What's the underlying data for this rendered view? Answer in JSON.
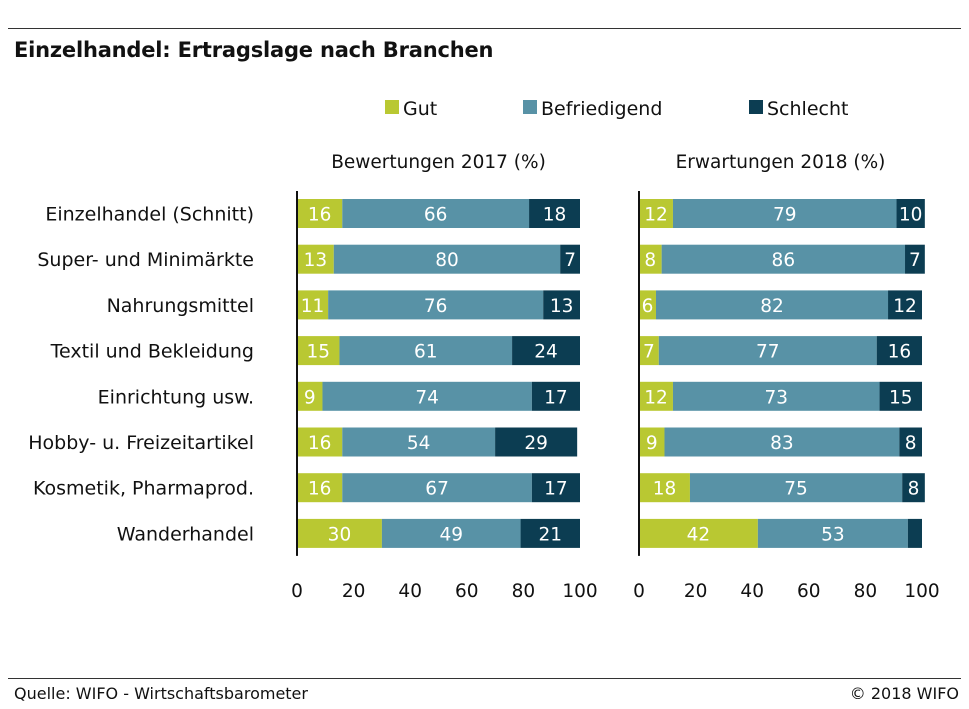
{
  "title": "Einzelhandel: Ertragslage nach Branchen",
  "source": "Quelle: WIFO - Wirtschaftsbarometer",
  "copyright": "© 2018 WIFO",
  "legend": [
    {
      "label": "Gut",
      "color": "#b9c832"
    },
    {
      "label": "Befriedigend",
      "color": "#5892a6"
    },
    {
      "label": "Schlecht",
      "color": "#0c3d52"
    }
  ],
  "chart_data": [
    {
      "type": "bar",
      "orientation": "horizontal",
      "stacked": true,
      "title": "Bewertungen 2017 (%)",
      "categories": [
        "Einzelhandel (Schnitt)",
        "Super- und Minimärkte",
        "Nahrungsmittel",
        "Textil und Bekleidung",
        "Einrichtung usw.",
        "Hobby- u. Freizeitartikel",
        "Kosmetik, Pharmaprod.",
        "Wanderhandel"
      ],
      "series": [
        {
          "name": "Gut",
          "color": "#b9c832",
          "values": [
            16,
            13,
            11,
            15,
            9,
            16,
            16,
            30
          ]
        },
        {
          "name": "Befriedigend",
          "color": "#5892a6",
          "values": [
            66,
            80,
            76,
            61,
            74,
            54,
            67,
            49
          ]
        },
        {
          "name": "Schlecht",
          "color": "#0c3d52",
          "values": [
            18,
            7,
            13,
            24,
            17,
            29,
            17,
            21
          ]
        }
      ],
      "xlim": [
        0,
        100
      ],
      "xticks": [
        "0",
        "20",
        "40",
        "60",
        "80",
        "100"
      ],
      "legend_position": "top"
    },
    {
      "type": "bar",
      "orientation": "horizontal",
      "stacked": true,
      "title": "Erwartungen 2018 (%)",
      "categories": [
        "Einzelhandel (Schnitt)",
        "Super- und Minimärkte",
        "Nahrungsmittel",
        "Textil und Bekleidung",
        "Einrichtung usw.",
        "Hobby- u. Freizeitartikel",
        "Kosmetik, Pharmaprod.",
        "Wanderhandel"
      ],
      "series": [
        {
          "name": "Gut",
          "color": "#b9c832",
          "values": [
            12,
            8,
            6,
            7,
            12,
            9,
            18,
            42
          ]
        },
        {
          "name": "Befriedigend",
          "color": "#5892a6",
          "values": [
            79,
            86,
            82,
            77,
            73,
            83,
            75,
            53
          ]
        },
        {
          "name": "Schlecht",
          "color": "#0c3d52",
          "values": [
            10,
            7,
            12,
            16,
            15,
            8,
            8,
            5
          ]
        }
      ],
      "value_labels": [
        [
          "12",
          "79",
          "10"
        ],
        [
          "8",
          "86",
          "7"
        ],
        [
          "6",
          "82",
          "12"
        ],
        [
          "7",
          "77",
          "16"
        ],
        [
          "12",
          "73",
          "15"
        ],
        [
          "9",
          "83",
          "8"
        ],
        [
          "18",
          "75",
          "8"
        ],
        [
          "42",
          "53",
          ""
        ]
      ],
      "xlim": [
        0,
        100
      ],
      "xticks": [
        "0",
        "20",
        "40",
        "60",
        "80",
        "100"
      ],
      "legend_position": "top"
    }
  ]
}
